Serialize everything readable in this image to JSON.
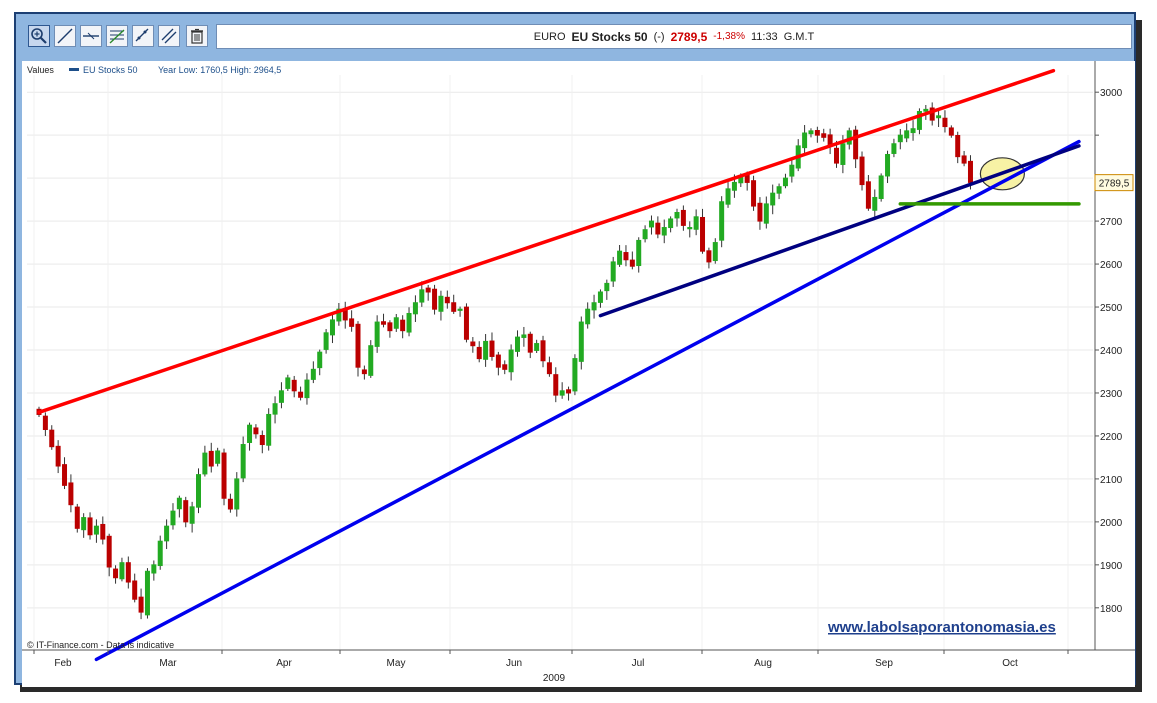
{
  "header": {
    "market": "EURO",
    "name": "EU Stocks 50",
    "flag": "(-)",
    "price": "2789,5",
    "change": "-1,38%",
    "time": "11:33",
    "timezone": "G.M.T"
  },
  "toolbar": {
    "tools": [
      {
        "name": "zoom-tool",
        "icon": "magnifier-plus-icon"
      },
      {
        "name": "trendline-tool",
        "icon": "diagonal-line-icon"
      },
      {
        "name": "horizontal-line-tool",
        "icon": "horizontal-line-icon"
      },
      {
        "name": "fibonacci-tool",
        "icon": "fibonacci-icon"
      },
      {
        "name": "channel-tool",
        "icon": "channel-icon"
      },
      {
        "name": "parallel-line-tool",
        "icon": "parallel-lines-icon"
      },
      {
        "name": "delete-tool",
        "icon": "trash-icon"
      }
    ]
  },
  "chart_data": {
    "type": "candlestick",
    "legend": {
      "values_label": "Values",
      "series_label": "EU Stocks 50",
      "range_text": "Year Low: 1760,5 High: 2964,5"
    },
    "ylim": [
      1720,
      3060
    ],
    "yticks": [
      1800,
      1900,
      2000,
      2100,
      2200,
      2300,
      2400,
      2500,
      2600,
      2700,
      2800,
      2900,
      3000
    ],
    "ytick_labels": [
      "1800",
      "1900",
      "2000",
      "2100",
      "2200",
      "2300",
      "2400",
      "2500",
      "2600",
      "2700",
      "",
      "",
      "3000"
    ],
    "x_months": [
      "Feb",
      "Mar",
      "Apr",
      "May",
      "Jun",
      "Jul",
      "Aug",
      "Sep",
      "Oct"
    ],
    "x_year": "2009",
    "last_price_label": "2789,5",
    "last_price": 2789.5,
    "closes": [
      2250,
      2215,
      2175,
      2130,
      2085,
      2040,
      1985,
      2010,
      1970,
      1990,
      1960,
      1895,
      1870,
      1905,
      1860,
      1820,
      1790,
      1885,
      1900,
      1955,
      1990,
      2025,
      2055,
      2000,
      2035,
      2110,
      2160,
      2130,
      2165,
      2055,
      2030,
      2100,
      2180,
      2225,
      2205,
      2180,
      2250,
      2275,
      2305,
      2335,
      2305,
      2290,
      2330,
      2355,
      2395,
      2440,
      2470,
      2495,
      2470,
      2455,
      2360,
      2345,
      2410,
      2465,
      2460,
      2445,
      2475,
      2445,
      2485,
      2510,
      2540,
      2535,
      2495,
      2525,
      2510,
      2490,
      2495,
      2425,
      2410,
      2380,
      2420,
      2385,
      2360,
      2355,
      2400,
      2430,
      2435,
      2395,
      2415,
      2375,
      2345,
      2295,
      2305,
      2300,
      2380,
      2465,
      2495,
      2510,
      2535,
      2555,
      2605,
      2630,
      2610,
      2595,
      2655,
      2680,
      2700,
      2670,
      2685,
      2705,
      2720,
      2690,
      2685,
      2710,
      2630,
      2605,
      2650,
      2745,
      2775,
      2790,
      2805,
      2790,
      2735,
      2700,
      2740,
      2765,
      2780,
      2800,
      2830,
      2875,
      2905,
      2910,
      2900,
      2895,
      2875,
      2835,
      2880,
      2910,
      2845,
      2785,
      2730,
      2755,
      2805,
      2855,
      2880,
      2900,
      2910,
      2915,
      2955,
      2960,
      2935,
      2945,
      2920,
      2900,
      2850,
      2835,
      2790
    ],
    "annotations": {
      "red_resistance": {
        "from": [
          0,
          2255
        ],
        "to": [
          159,
          3050
        ],
        "color": "#ff0000"
      },
      "blue_support": {
        "from": [
          9,
          1680
        ],
        "to": [
          163,
          2885
        ],
        "color": "#0000ee"
      },
      "navy_support": {
        "from": [
          88,
          2480
        ],
        "to": [
          163,
          2875
        ],
        "color": "#000080"
      },
      "green_support": {
        "from": [
          135,
          2740
        ],
        "to": [
          163,
          2740
        ],
        "color": "#339900"
      },
      "highlight_circle": {
        "center": [
          151,
          2810
        ],
        "color": "#f7f2a5"
      }
    },
    "colors": {
      "up": "#22aa22",
      "down": "#bb0000"
    }
  },
  "footer": {
    "source": "© IT-Finance.com - Data is indicative",
    "watermark": "www.labolsaporantonomasia.es"
  }
}
